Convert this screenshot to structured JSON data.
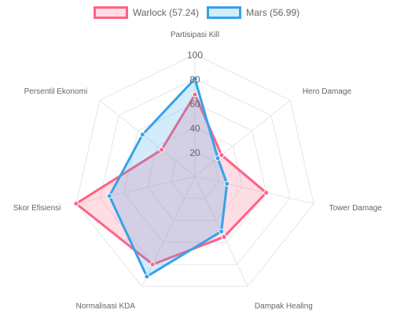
{
  "chart_data": {
    "type": "radar",
    "title": "",
    "categories": [
      "Partisipasi Kill",
      "Hero Damage",
      "Tower Damage",
      "Dampak Healing",
      "Normalisasi KDA",
      "Skor Efisiensi",
      "Persentil Ekonomi"
    ],
    "r_ticks": [
      "20",
      "40",
      "60",
      "80",
      "100"
    ],
    "r_range": [
      0,
      100
    ],
    "grid": true,
    "legend_position": "top",
    "series": [
      {
        "name": "Warlock (57.24)",
        "values": [
          67,
          28,
          60,
          55,
          80,
          100,
          35
        ],
        "border_color": "#ff6384",
        "fill_color": "rgba(255,99,132,0.22)"
      },
      {
        "name": "Mars (56.99)",
        "values": [
          80,
          24,
          27,
          50,
          91,
          72,
          55
        ],
        "border_color": "#36a2eb",
        "fill_color": "rgba(54,162,235,0.22)"
      }
    ]
  }
}
